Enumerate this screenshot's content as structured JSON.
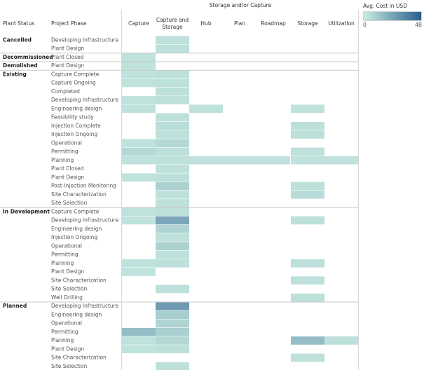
{
  "chart_data": {
    "type": "heatmap",
    "column_group_title": "Storage and/or Capture",
    "row_headers": [
      "Plant Status",
      "Project Phase"
    ],
    "columns": [
      "Capture",
      "Capture and Storage",
      "Hub",
      "Plan",
      "Roadmap",
      "Storage",
      "Utilization"
    ],
    "legend": {
      "title": "Avg. Cost in USD",
      "min_label": "0",
      "max_label": "4B",
      "min": 0,
      "max": 4000000000,
      "color_low": "#c9ebe1",
      "color_high": "#2a5e8e"
    },
    "groups": [
      {
        "status": "Cancelled",
        "phases": [
          {
            "phase": "Developing Infrastructure",
            "values": [
              null,
              0.3,
              null,
              null,
              null,
              null,
              null
            ]
          },
          {
            "phase": "Plant Design",
            "values": [
              null,
              0.3,
              null,
              null,
              null,
              null,
              null
            ]
          }
        ]
      },
      {
        "status": "Decommissioned",
        "phases": [
          {
            "phase": "Plant Closed",
            "values": [
              0.25,
              null,
              null,
              null,
              null,
              null,
              null
            ]
          }
        ]
      },
      {
        "status": "Demolished",
        "phases": [
          {
            "phase": "Plant Design",
            "values": [
              0.25,
              null,
              null,
              null,
              null,
              null,
              null
            ]
          }
        ]
      },
      {
        "status": "Existing",
        "phases": [
          {
            "phase": "Capture Complete",
            "values": [
              0.25,
              0.3,
              null,
              null,
              null,
              null,
              null
            ]
          },
          {
            "phase": "Capture Ongoing",
            "values": [
              0.25,
              0.3,
              null,
              null,
              null,
              null,
              null
            ]
          },
          {
            "phase": "Completed",
            "values": [
              null,
              0.3,
              null,
              null,
              null,
              null,
              null
            ]
          },
          {
            "phase": "Developing Infrastructure",
            "values": [
              0.25,
              0.3,
              null,
              null,
              null,
              null,
              null
            ]
          },
          {
            "phase": "Engineering design",
            "values": [
              0.25,
              null,
              0.25,
              null,
              null,
              0.25,
              null
            ]
          },
          {
            "phase": "Feasibility study",
            "values": [
              null,
              0.3,
              null,
              null,
              null,
              null,
              null
            ]
          },
          {
            "phase": "Injection Complete",
            "values": [
              null,
              0.4,
              null,
              null,
              null,
              0.3,
              null
            ]
          },
          {
            "phase": "Injection Ongoing",
            "values": [
              null,
              0.3,
              null,
              null,
              null,
              0.3,
              null
            ]
          },
          {
            "phase": "Operational",
            "values": [
              0.25,
              0.55,
              null,
              null,
              null,
              null,
              null
            ]
          },
          {
            "phase": "Permitting",
            "values": [
              0.55,
              0.3,
              null,
              null,
              null,
              0.3,
              null
            ]
          },
          {
            "phase": "Planning",
            "values": [
              0.25,
              0.3,
              0.25,
              0.25,
              0.25,
              0.25,
              0.25
            ]
          },
          {
            "phase": "Plant Closed",
            "values": [
              null,
              0.3,
              null,
              null,
              null,
              null,
              null
            ]
          },
          {
            "phase": "Plant Design",
            "values": [
              0.25,
              0.3,
              null,
              null,
              null,
              null,
              null
            ]
          },
          {
            "phase": "Post-Injection Monitoring",
            "values": [
              null,
              0.75,
              null,
              null,
              null,
              0.3,
              null
            ]
          },
          {
            "phase": "Site Characterization",
            "values": [
              null,
              0.3,
              null,
              null,
              null,
              0.45,
              null
            ]
          },
          {
            "phase": "Site Selection",
            "values": [
              null,
              0.3,
              null,
              null,
              null,
              null,
              null
            ]
          }
        ]
      },
      {
        "status": "In Development",
        "phases": [
          {
            "phase": "Capture Complete",
            "values": [
              0.25,
              0.3,
              null,
              null,
              null,
              null,
              null
            ]
          },
          {
            "phase": "Developing Infrastructure",
            "values": [
              0.25,
              1.95,
              null,
              null,
              null,
              0.3,
              null
            ]
          },
          {
            "phase": "Engineering design",
            "values": [
              null,
              0.65,
              null,
              null,
              null,
              null,
              null
            ]
          },
          {
            "phase": "Injection Ongoing",
            "values": [
              null,
              0.3,
              null,
              null,
              null,
              null,
              null
            ]
          },
          {
            "phase": "Operational",
            "values": [
              null,
              0.75,
              null,
              null,
              null,
              null,
              null
            ]
          },
          {
            "phase": "Permitting",
            "values": [
              null,
              0.3,
              null,
              null,
              null,
              null,
              null
            ]
          },
          {
            "phase": "Planning",
            "values": [
              0.25,
              0.3,
              null,
              null,
              null,
              0.3,
              null
            ]
          },
          {
            "phase": "Plant Design",
            "values": [
              0.25,
              null,
              null,
              null,
              null,
              null,
              null
            ]
          },
          {
            "phase": "Site Characterization",
            "values": [
              null,
              null,
              null,
              null,
              null,
              0.3,
              null
            ]
          },
          {
            "phase": "Site Selection",
            "values": [
              null,
              0.3,
              null,
              null,
              null,
              null,
              null
            ]
          },
          {
            "phase": "Well Drilling",
            "values": [
              null,
              null,
              null,
              null,
              null,
              0.3,
              null
            ]
          }
        ]
      },
      {
        "status": "Planned",
        "phases": [
          {
            "phase": "Developing Infrastructure",
            "values": [
              null,
              2.3,
              null,
              null,
              null,
              null,
              null
            ]
          },
          {
            "phase": "Engineering design",
            "values": [
              null,
              0.85,
              null,
              null,
              null,
              null,
              null
            ]
          },
          {
            "phase": "Operational",
            "values": [
              null,
              0.65,
              null,
              null,
              null,
              null,
              null
            ]
          },
          {
            "phase": "Permitting",
            "values": [
              1.3,
              0.8,
              null,
              null,
              null,
              null,
              null
            ]
          },
          {
            "phase": "Planning",
            "values": [
              0.25,
              0.55,
              null,
              null,
              null,
              1.3,
              0.3
            ]
          },
          {
            "phase": "Plant Design",
            "values": [
              0.25,
              0.3,
              null,
              null,
              null,
              null,
              null
            ]
          },
          {
            "phase": "Site Characterization",
            "values": [
              null,
              null,
              null,
              null,
              null,
              0.3,
              null
            ]
          },
          {
            "phase": "Site Selection",
            "values": [
              null,
              0.3,
              null,
              null,
              null,
              null,
              null
            ]
          }
        ]
      }
    ],
    "value_unit": "billion USD (estimated)"
  }
}
